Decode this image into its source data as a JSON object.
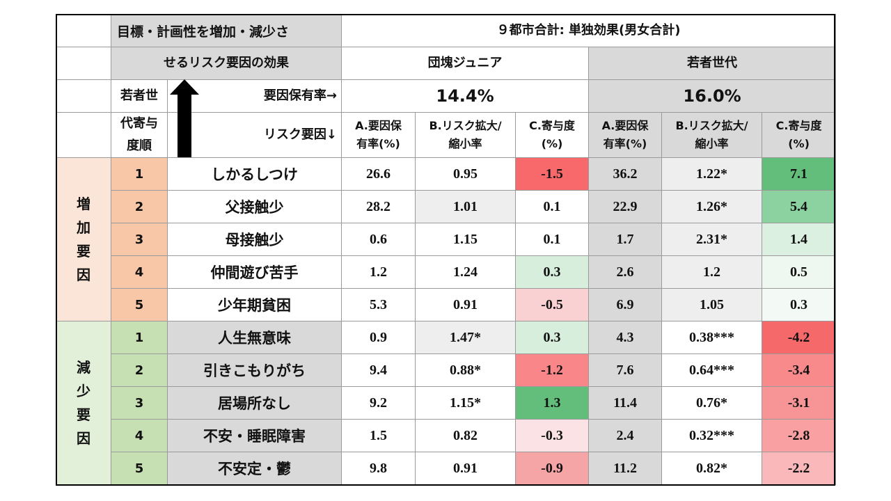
{
  "header": {
    "title_line1": "目標・計画性を増加・減少さ",
    "title_line2": "せるリスク要因の効果",
    "summary": "９都市合計: 単独効果(男女合計)",
    "group_a": "団塊ジュニア",
    "group_b": "若者世代",
    "rank_label_1": "若者世",
    "rank_label_2": "代寄与",
    "rank_label_3": "度順",
    "prevalence_label": "要因保有率→",
    "factor_label": "リスク要因↓",
    "rate_a": "14.4%",
    "rate_b": "16.0%"
  },
  "columns": {
    "a1": "A.要因保",
    "a2": "有率(%)",
    "b1": "B.リスク拡大/",
    "b2": "縮小率",
    "c1": "C.寄与度",
    "c2": "(%)"
  },
  "side": {
    "increase": [
      "増",
      "加",
      "要",
      "因"
    ],
    "decrease": [
      "減",
      "少",
      "要",
      "因"
    ]
  },
  "rows": [
    {
      "rank": "1",
      "factor": "しかるしつけ",
      "a_a": "26.6",
      "a_b": "0.95",
      "a_c": "-1.5",
      "b_a": "36.2",
      "b_b": "1.22*",
      "b_c": "7.1"
    },
    {
      "rank": "2",
      "factor": "父接触少",
      "a_a": "28.2",
      "a_b": "1.01",
      "a_c": "0.1",
      "b_a": "22.9",
      "b_b": "1.26*",
      "b_c": "5.4"
    },
    {
      "rank": "3",
      "factor": "母接触少",
      "a_a": "0.6",
      "a_b": "1.15",
      "a_c": "0.1",
      "b_a": "1.7",
      "b_b": "2.31*",
      "b_c": "1.4"
    },
    {
      "rank": "4",
      "factor": "仲間遊び苦手",
      "a_a": "1.2",
      "a_b": "1.24",
      "a_c": "0.3",
      "b_a": "2.6",
      "b_b": "1.2",
      "b_c": "0.5"
    },
    {
      "rank": "5",
      "factor": "少年期貧困",
      "a_a": "5.3",
      "a_b": "0.91",
      "a_c": "-0.5",
      "b_a": "6.9",
      "b_b": "1.05",
      "b_c": "0.3"
    },
    {
      "rank": "1",
      "factor": "人生無意味",
      "a_a": "0.9",
      "a_b": "1.47*",
      "a_c": "0.3",
      "b_a": "4.3",
      "b_b": "0.38***",
      "b_c": "-4.2"
    },
    {
      "rank": "2",
      "factor": "引きこもりがち",
      "a_a": "9.4",
      "a_b": "0.88*",
      "a_c": "-1.2",
      "b_a": "7.6",
      "b_b": "0.64***",
      "b_c": "-3.4"
    },
    {
      "rank": "3",
      "factor": "居場所なし",
      "a_a": "9.2",
      "a_b": "1.15*",
      "a_c": "1.3",
      "b_a": "11.4",
      "b_b": "0.76*",
      "b_c": "-3.1"
    },
    {
      "rank": "4",
      "factor": "不安・睡眠障害",
      "a_a": "1.5",
      "a_b": "0.82",
      "a_c": "-0.3",
      "b_a": "2.4",
      "b_b": "0.32***",
      "b_c": "-2.8"
    },
    {
      "rank": "5",
      "factor": "不安定・鬱",
      "a_a": "9.8",
      "a_b": "0.91",
      "a_c": "-0.9",
      "b_a": "11.2",
      "b_b": "0.82*",
      "b_c": "-2.2"
    }
  ],
  "colors": {
    "a_c": [
      "#f8696b",
      "#ffffff",
      "#ffffff",
      "#d7eedd",
      "#f9d1d3",
      "#d7eedd",
      "#f98688",
      "#63be7b",
      "#fbe3e5",
      "#f6a5a7"
    ],
    "b_c": [
      "#63be7b",
      "#8cd1a0",
      "#dbf0e1",
      "#eef8f1",
      "#f3faf5",
      "#f6696b",
      "#f88a8c",
      "#f79496",
      "#f9a0a2",
      "#fab8ba"
    ],
    "a_b": [
      "#ffffff",
      "#eeeeee",
      "#ffffff",
      "#ffffff",
      "#ffffff",
      "#eeeeee",
      "#ffffff",
      "#ffffff",
      "#ffffff",
      "#ffffff"
    ],
    "b_b": [
      "#eeeeee",
      "#eeeeee",
      "#eeeeee",
      "#eeeeee",
      "#eeeeee",
      "#ffffff",
      "#ffffff",
      "#ffffff",
      "#ffffff",
      "#ffffff"
    ],
    "factor": [
      "#ffffff",
      "#ffffff",
      "#ffffff",
      "#ffffff",
      "#ffffff",
      "#d9d9d9",
      "#d9d9d9",
      "#d9d9d9",
      "#d9d9d9",
      "#d9d9d9"
    ]
  }
}
